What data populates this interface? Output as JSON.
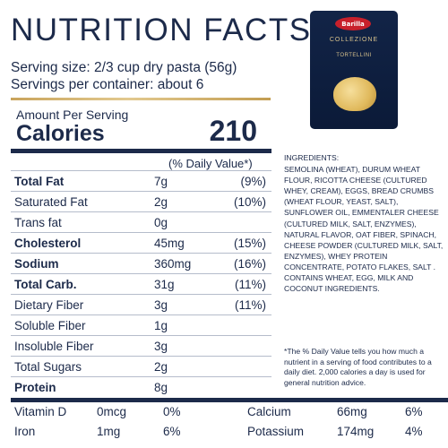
{
  "header": {
    "title": "NUTRITION FACTS",
    "serving_size": "Serving size: 2/3 cup dry pasta (56g)",
    "servings_per_container": "Servings per container: about 6"
  },
  "package": {
    "brand": "Barilla",
    "line": "COLLEZIONE",
    "product": "TORTELLINI"
  },
  "calories": {
    "amount_label": "Amount Per Serving",
    "label": "Calories",
    "value": "210"
  },
  "daily_value_header": "(% Daily Value*)",
  "nutrients": [
    {
      "label": "Total Fat",
      "amount": "7g",
      "dv": "(9%)",
      "bold": true
    },
    {
      "label": "Saturated Fat",
      "amount": "2g",
      "dv": "(10%)",
      "bold": false
    },
    {
      "label": "Trans fat",
      "amount": "0g",
      "dv": "",
      "bold": false
    },
    {
      "label": "Cholesterol",
      "amount": "45mg",
      "dv": "(15%)",
      "bold": true
    },
    {
      "label": "Sodium",
      "amount": "360mg",
      "dv": "(16%)",
      "bold": true
    },
    {
      "label": "Total Carb.",
      "amount": "31g",
      "dv": "(11%)",
      "bold": true
    },
    {
      "label": "Dietary Fiber",
      "amount": "3g",
      "dv": "(11%)",
      "bold": false
    },
    {
      "label": "Soluble Fiber",
      "amount": "1g",
      "dv": "",
      "bold": false
    },
    {
      "label": "Insoluble Fiber",
      "amount": "3g",
      "dv": "",
      "bold": false
    },
    {
      "label": "Total Sugars",
      "amount": "2g",
      "dv": "",
      "bold": false
    },
    {
      "label": "Protein",
      "amount": "8g",
      "dv": "",
      "bold": true
    }
  ],
  "vitamins": {
    "vitamin_d": {
      "label": "Vitamin D",
      "amount": "0mcg",
      "dv": "0%"
    },
    "iron": {
      "label": "Iron",
      "amount": "1mg",
      "dv": "6%"
    },
    "calcium": {
      "label": "Calcium",
      "amount": "66mg",
      "dv": "6%"
    },
    "potassium": {
      "label": "Potassium",
      "amount": "174mg",
      "dv": "4%"
    }
  },
  "ingredients": {
    "title": "INGREDIENTS:",
    "text": "SEMOLINA (WHEAT), DURUM WHEAT FLOUR, RICOTTA CHEESE (CULTURED WHEY, CREAM), EGGS, BREAD CRUMBS (WHEAT FLOUR, YEAST, SALT), SUNFLOWER OIL, EMMENTALER CHEESE (CULTURED MILK, SALT, ENZYMES), NATURAL FLAVOR, OAT FIBER,  SPINACH, CHEESE POWDER (CULTURED MILK, SALT, ENZYMES), WHEY PROTEIN CONCENTRATE, POTATO FLAKES, SALT . CONTAINS WHEAT, EGG, MILK AND COCONUT INGREDIENTS."
  },
  "footnote": "*The % Daily Value tells you how much a nutrient in a serving of  food contributes to a daily diet. 2,000 calories a day is used for general nutrition advice."
}
